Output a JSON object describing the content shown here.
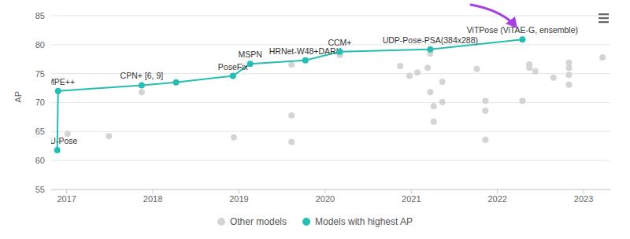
{
  "chart_data": {
    "type": "scatter",
    "y_label": "AP",
    "xlim": [
      2016.82,
      2023.31
    ],
    "xticks": [
      2017,
      2018,
      2019,
      2020,
      2021,
      2022,
      2023
    ],
    "ylim": [
      55,
      85
    ],
    "yticks": [
      55,
      60,
      65,
      70,
      75,
      80,
      85
    ],
    "grid": true,
    "legend": "bottom",
    "series": [
      {
        "name": "Other models",
        "color": "#d4d4d4",
        "marker": "circle",
        "type": "scatter",
        "x": [
          2017.01,
          2017.49,
          2017.87,
          2018.94,
          2019.61,
          2019.61,
          2019.61,
          2020.17,
          2020.87,
          2020.98,
          2021.07,
          2021.19,
          2021.22,
          2021.22,
          2021.26,
          2021.26,
          2021.36,
          2021.36,
          2021.76,
          2021.86,
          2021.86,
          2021.86,
          2022.29,
          2022.37,
          2022.37,
          2022.44,
          2022.65,
          2022.83,
          2022.83,
          2022.83,
          2022.83,
          2023.22
        ],
        "values": [
          64.6,
          64.2,
          71.8,
          64.0,
          76.6,
          67.8,
          63.2,
          78.2,
          76.3,
          74.6,
          75.2,
          76.0,
          71.8,
          78.5,
          69.4,
          66.7,
          73.6,
          70.1,
          75.8,
          70.3,
          68.6,
          63.6,
          70.3,
          76.6,
          76.0,
          75.4,
          74.3,
          76.9,
          76.0,
          74.8,
          73.1,
          77.8
        ]
      },
      {
        "name": "Models with highest AP",
        "color": "#26bdb3",
        "marker": "circle",
        "type": "line",
        "x": [
          2016.89,
          2016.9,
          2017.87,
          2018.27,
          2018.93,
          2019.13,
          2019.77,
          2020.17,
          2021.22,
          2022.29
        ],
        "values": [
          61.8,
          72.0,
          73.0,
          73.5,
          74.6,
          76.7,
          77.3,
          78.8,
          79.2,
          80.9
        ],
        "labels": [
          "CMU-Pose",
          "RMPE++",
          "CPN+ [6, 9]",
          null,
          "PoseFix",
          "MSPN",
          "HRNet-W48+DARK",
          "CCM+",
          "UDP-Pose-PSA(384x288)",
          "ViTPose (ViTAE-G, ensemble)"
        ]
      }
    ]
  }
}
